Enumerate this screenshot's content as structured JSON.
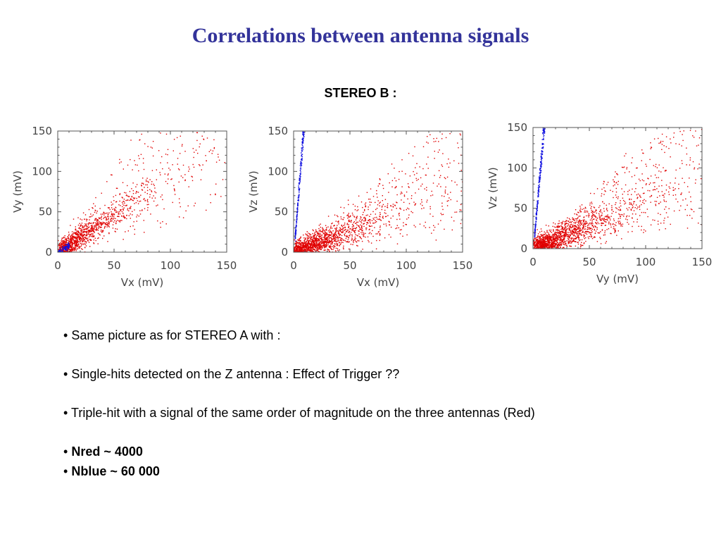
{
  "title": "Correlations between antenna signals",
  "subtitle": "STEREO B :",
  "bullets": [
    {
      "marker": "•",
      "text": "Same picture as for STEREO A with :",
      "bold": false
    },
    {
      "marker": "•",
      "text": "Single-hits detected on the Z antenna : Effect of Trigger ??",
      "bold": false
    },
    {
      "marker": "•",
      "text": "Triple-hit with a signal of the same order of magnitude on the three antennas (Red)",
      "bold": false
    },
    {
      "marker": "•",
      "text": "Nred ~ 4000",
      "bold": true
    },
    {
      "marker": "•",
      "text": "Nblue ~ 60 000",
      "bold": true
    }
  ],
  "colors": {
    "title": "#33339a",
    "red_points": "#e00000",
    "blue_points": "#1010e0",
    "axes": "#555555"
  },
  "chart_data": [
    {
      "type": "scatter",
      "xlabel": "Vx (mV)",
      "ylabel": "Vy (mV)",
      "xlim": [
        0,
        150
      ],
      "ylim": [
        0,
        150
      ],
      "xticks": [
        "0",
        "50",
        "100",
        "150"
      ],
      "yticks": [
        "0",
        "50",
        "100",
        "150"
      ],
      "series": [
        {
          "color": "red",
          "count": 1500,
          "slope": 0.95,
          "spread_along": 130,
          "spread_across": 7
        },
        {
          "color": "blue",
          "count": 100,
          "slope": 0.9,
          "xmax": 10
        }
      ]
    },
    {
      "type": "scatter",
      "xlabel": "Vx (mV)",
      "ylabel": "Vz (mV)",
      "xlim": [
        0,
        150
      ],
      "ylim": [
        0,
        150
      ],
      "xticks": [
        "0",
        "50",
        "100",
        "150"
      ],
      "yticks": [
        "0",
        "50",
        "100",
        "150"
      ],
      "series": [
        {
          "color": "red",
          "count": 1900,
          "slope": 0.55,
          "spread_along": 150,
          "spread_across": 9
        },
        {
          "color": "blue",
          "count": 350,
          "slope": 18,
          "xmin": 1,
          "xmax": 14
        }
      ]
    },
    {
      "type": "scatter",
      "xlabel": "Vy (mV)",
      "ylabel": "Vz (mV)",
      "xlim": [
        0,
        150
      ],
      "ylim": [
        0,
        150
      ],
      "xticks": [
        "0",
        "50",
        "100",
        "150"
      ],
      "yticks": [
        "0",
        "50",
        "100",
        "150"
      ],
      "series": [
        {
          "color": "red",
          "count": 2100,
          "slope": 0.6,
          "spread_along": 150,
          "spread_across": 9
        },
        {
          "color": "blue",
          "count": 350,
          "slope": 16,
          "xmin": 1,
          "xmax": 14
        }
      ]
    }
  ]
}
